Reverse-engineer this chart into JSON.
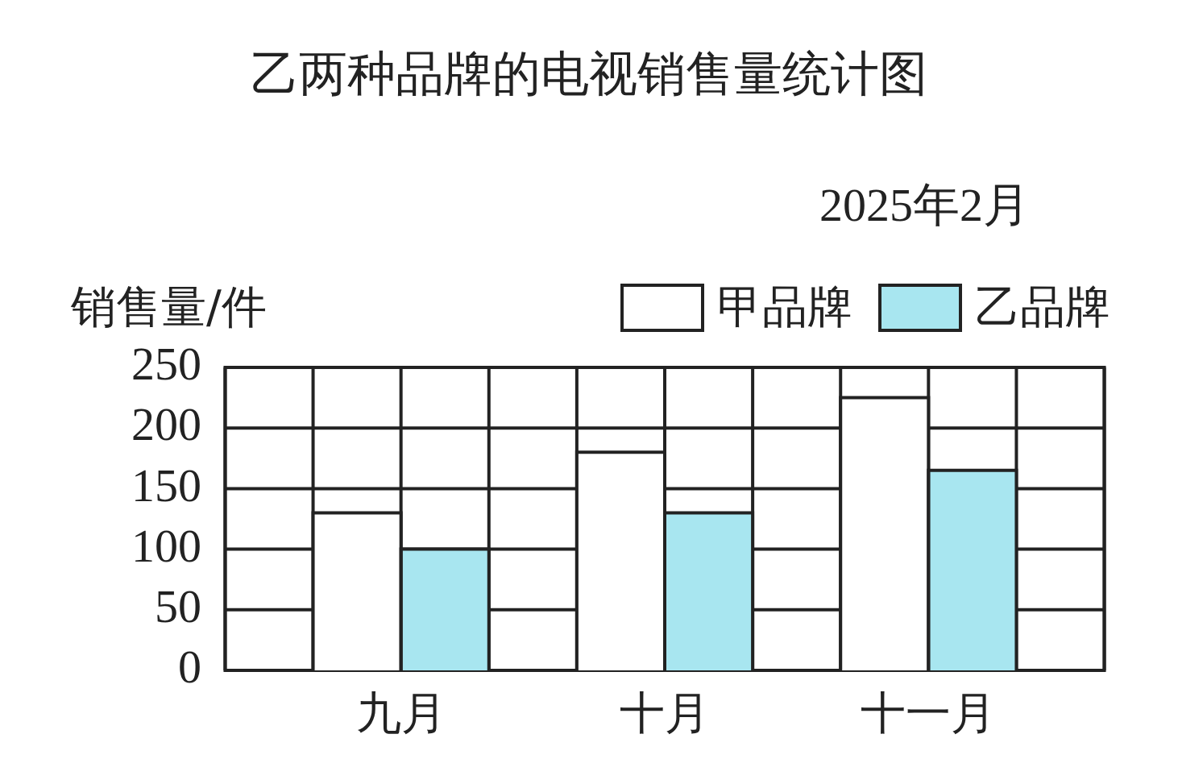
{
  "chart_data": {
    "type": "bar",
    "title": "乙两种品牌的电视销售量统计图",
    "subtitle": "2025年2月",
    "ylabel": "销售量/件",
    "categories": [
      "九月",
      "十月",
      "十一月"
    ],
    "series": [
      {
        "name": "甲品牌",
        "color": "#ffffff",
        "values": [
          130,
          180,
          225
        ]
      },
      {
        "name": "乙品牌",
        "color": "#a8e6f0",
        "values": [
          100,
          130,
          165
        ]
      }
    ],
    "ylim": [
      0,
      250
    ],
    "yticks": [
      0,
      50,
      100,
      150,
      200,
      250
    ],
    "grid": true,
    "legend": "top right"
  }
}
